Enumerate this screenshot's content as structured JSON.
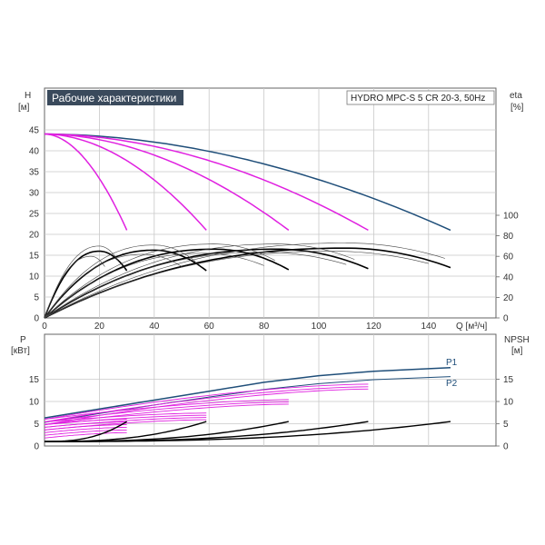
{
  "chart_data": [
    {
      "type": "line",
      "title": "Рабочие характеристики",
      "subtitle": "HYDRO MPC-S 5 CR 20-3, 50Hz",
      "left_axis_label": [
        "H",
        "[м]"
      ],
      "right_axis_label": [
        "eta",
        "[%]"
      ],
      "xlabel": "Q [м³/ч]",
      "xlim": [
        0,
        155
      ],
      "ylim": [
        0,
        50
      ],
      "x_ticks": [
        "0",
        "20",
        "40",
        "60",
        "80",
        "100",
        "120",
        "140"
      ],
      "y_ticks": [
        "0",
        "5",
        "10",
        "15",
        "20",
        "25",
        "30",
        "35",
        "40",
        "45"
      ],
      "right_ticks": [
        "0",
        "20",
        "40",
        "60",
        "80",
        "100"
      ],
      "eta_ylim": [
        0,
        100
      ],
      "colors": {
        "max_curve": "#1f4e79",
        "pump_curves": "#e020e0",
        "eta_curves": "#000000",
        "eta_thin": "#444444"
      },
      "head_curves": [
        {
          "qmax": 148,
          "h0": 44,
          "h_end": 21,
          "style": "max"
        },
        {
          "qmax": 118,
          "h0": 44,
          "h_end": 21,
          "style": "pump"
        },
        {
          "qmax": 89,
          "h0": 44,
          "h_end": 21,
          "style": "pump"
        },
        {
          "qmax": 59,
          "h0": 44,
          "h_end": 21,
          "style": "pump"
        },
        {
          "qmax": 30,
          "h0": 44,
          "h_end": 21,
          "style": "pump"
        }
      ],
      "eta_curves": [
        {
          "qmax": 30,
          "peak": 65,
          "q_peak": 20,
          "end": 46,
          "bold": true
        },
        {
          "qmax": 59,
          "peak": 66,
          "q_peak": 40,
          "end": 46,
          "bold": true
        },
        {
          "qmax": 89,
          "peak": 67,
          "q_peak": 62,
          "end": 47,
          "bold": true
        },
        {
          "qmax": 118,
          "peak": 67,
          "q_peak": 85,
          "end": 48,
          "bold": true
        },
        {
          "qmax": 148,
          "peak": 68,
          "q_peak": 110,
          "end": 49,
          "bold": true
        },
        {
          "qmax": 27,
          "peak": 70,
          "q_peak": 20,
          "end": 55,
          "bold": false
        },
        {
          "qmax": 55,
          "peak": 71,
          "q_peak": 40,
          "end": 55,
          "bold": false
        },
        {
          "qmax": 84,
          "peak": 72,
          "q_peak": 62,
          "end": 56,
          "bold": false
        },
        {
          "qmax": 113,
          "peak": 72,
          "q_peak": 85,
          "end": 57,
          "bold": false
        },
        {
          "qmax": 146,
          "peak": 73,
          "q_peak": 110,
          "end": 58,
          "bold": false
        },
        {
          "qmax": 22,
          "peak": 60,
          "q_peak": 17,
          "end": 50,
          "bold": false
        },
        {
          "qmax": 50,
          "peak": 62,
          "q_peak": 36,
          "end": 50,
          "bold": false
        },
        {
          "qmax": 80,
          "peak": 63,
          "q_peak": 58,
          "end": 51,
          "bold": false
        },
        {
          "qmax": 110,
          "peak": 64,
          "q_peak": 80,
          "end": 52,
          "bold": false
        },
        {
          "qmax": 140,
          "peak": 65,
          "q_peak": 105,
          "end": 53,
          "bold": false
        }
      ]
    },
    {
      "type": "line",
      "left_axis_label": [
        "P",
        "[кВт]"
      ],
      "right_axis_label": [
        "NPSH",
        "[м]"
      ],
      "xlim": [
        0,
        155
      ],
      "ylim": [
        0,
        20
      ],
      "y_ticks": [
        "0",
        "5",
        "10",
        "15"
      ],
      "right_ticks": [
        "0",
        "5",
        "10",
        "15"
      ],
      "series_labels": [
        "P1",
        "P2"
      ],
      "colors": {
        "p1": "#1f4e79",
        "p2": "#1f4e79",
        "power": "#e020e0",
        "npsh": "#000000"
      },
      "p1": {
        "x": [
          0,
          20,
          40,
          60,
          80,
          100,
          120,
          148
        ],
        "y": [
          6.3,
          8.3,
          10.3,
          12.3,
          14.3,
          15.8,
          16.8,
          17.6
        ]
      },
      "p2": {
        "x": [
          0,
          20,
          40,
          60,
          80,
          100,
          120,
          148
        ],
        "y": [
          5.3,
          7.3,
          9.2,
          11.0,
          12.7,
          14.0,
          14.9,
          15.6
        ]
      },
      "power_curves": [
        {
          "qmax": 30,
          "y0": 4.8,
          "y1": 6.0
        },
        {
          "qmax": 30,
          "y0": 4.2,
          "y1": 5.4
        },
        {
          "qmax": 30,
          "y0": 3.6,
          "y1": 4.8
        },
        {
          "qmax": 30,
          "y0": 3.0,
          "y1": 4.2
        },
        {
          "qmax": 30,
          "y0": 2.4,
          "y1": 3.6
        },
        {
          "qmax": 30,
          "y0": 1.8,
          "y1": 3.0
        },
        {
          "qmax": 59,
          "y0": 5.4,
          "y1": 7.4
        },
        {
          "qmax": 59,
          "y0": 4.8,
          "y1": 6.9
        },
        {
          "qmax": 59,
          "y0": 4.2,
          "y1": 6.4
        },
        {
          "qmax": 59,
          "y0": 3.6,
          "y1": 5.9
        },
        {
          "qmax": 89,
          "y0": 6.0,
          "y1": 10.4
        },
        {
          "qmax": 89,
          "y0": 5.4,
          "y1": 9.9
        },
        {
          "qmax": 89,
          "y0": 4.8,
          "y1": 9.4
        },
        {
          "qmax": 118,
          "y0": 6.0,
          "y1": 13.9
        },
        {
          "qmax": 118,
          "y0": 5.4,
          "y1": 13.3
        },
        {
          "qmax": 118,
          "y0": 4.8,
          "y1": 12.8
        }
      ],
      "npsh_curves": [
        {
          "qmax": 30,
          "y_end": 5.5
        },
        {
          "qmax": 59,
          "y_end": 5.5
        },
        {
          "qmax": 89,
          "y_end": 5.5
        },
        {
          "qmax": 118,
          "y_end": 5.5
        },
        {
          "qmax": 148,
          "y_end": 5.5
        }
      ]
    }
  ]
}
